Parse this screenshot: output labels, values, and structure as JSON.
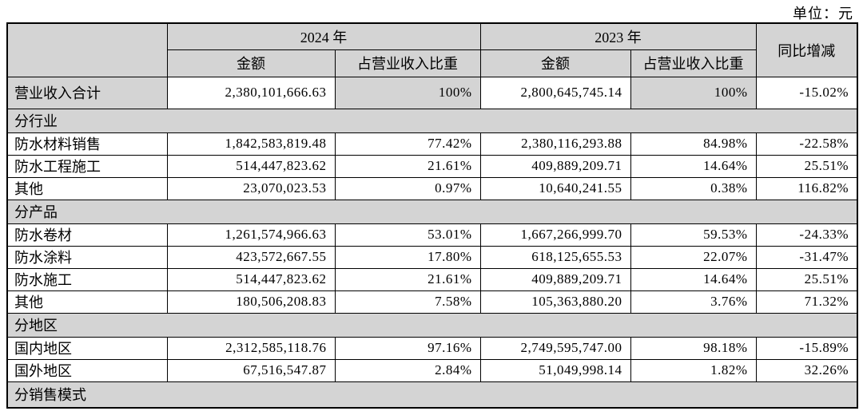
{
  "unit_label": "单位：元",
  "table": {
    "headers": {
      "year_2024": "2024 年",
      "year_2023": "2023 年",
      "yoy": "同比增减",
      "amount": "金额",
      "pct": "占营业收入比重"
    },
    "rows": [
      {
        "type": "total",
        "label": "营业收入合计",
        "a2024": "2,380,101,666.63",
        "p2024": "100%",
        "a2023": "2,800,645,745.14",
        "p2023": "100%",
        "yoy": "-15.02%"
      },
      {
        "type": "section",
        "label": "分行业"
      },
      {
        "type": "data",
        "label": "防水材料销售",
        "a2024": "1,842,583,819.48",
        "p2024": "77.42%",
        "a2023": "2,380,116,293.88",
        "p2023": "84.98%",
        "yoy": "-22.58%"
      },
      {
        "type": "data",
        "label": "防水工程施工",
        "a2024": "514,447,823.62",
        "p2024": "21.61%",
        "a2023": "409,889,209.71",
        "p2023": "14.64%",
        "yoy": "25.51%"
      },
      {
        "type": "data",
        "label": "其他",
        "a2024": "23,070,023.53",
        "p2024": "0.97%",
        "a2023": "10,640,241.55",
        "p2023": "0.38%",
        "yoy": "116.82%"
      },
      {
        "type": "section",
        "label": "分产品"
      },
      {
        "type": "data",
        "label": "防水卷材",
        "a2024": "1,261,574,966.63",
        "p2024": "53.01%",
        "a2023": "1,667,266,999.70",
        "p2023": "59.53%",
        "yoy": "-24.33%"
      },
      {
        "type": "data",
        "label": "防水涂料",
        "a2024": "423,572,667.55",
        "p2024": "17.80%",
        "a2023": "618,125,655.53",
        "p2023": "22.07%",
        "yoy": "-31.47%"
      },
      {
        "type": "data",
        "label": "防水施工",
        "a2024": "514,447,823.62",
        "p2024": "21.61%",
        "a2023": "409,889,209.71",
        "p2023": "14.64%",
        "yoy": "25.51%"
      },
      {
        "type": "data",
        "label": "其他",
        "a2024": "180,506,208.83",
        "p2024": "7.58%",
        "a2023": "105,363,880.20",
        "p2023": "3.76%",
        "yoy": "71.32%"
      },
      {
        "type": "section",
        "label": "分地区"
      },
      {
        "type": "data",
        "label": "国内地区",
        "a2024": "2,312,585,118.76",
        "p2024": "97.16%",
        "a2023": "2,749,595,747.00",
        "p2023": "98.18%",
        "yoy": "-15.89%"
      },
      {
        "type": "data",
        "label": "国外地区",
        "a2024": "67,516,547.87",
        "p2024": "2.84%",
        "a2023": "51,049,998.14",
        "p2023": "1.82%",
        "yoy": "32.26%"
      },
      {
        "type": "section",
        "label": "分销售模式"
      }
    ]
  }
}
